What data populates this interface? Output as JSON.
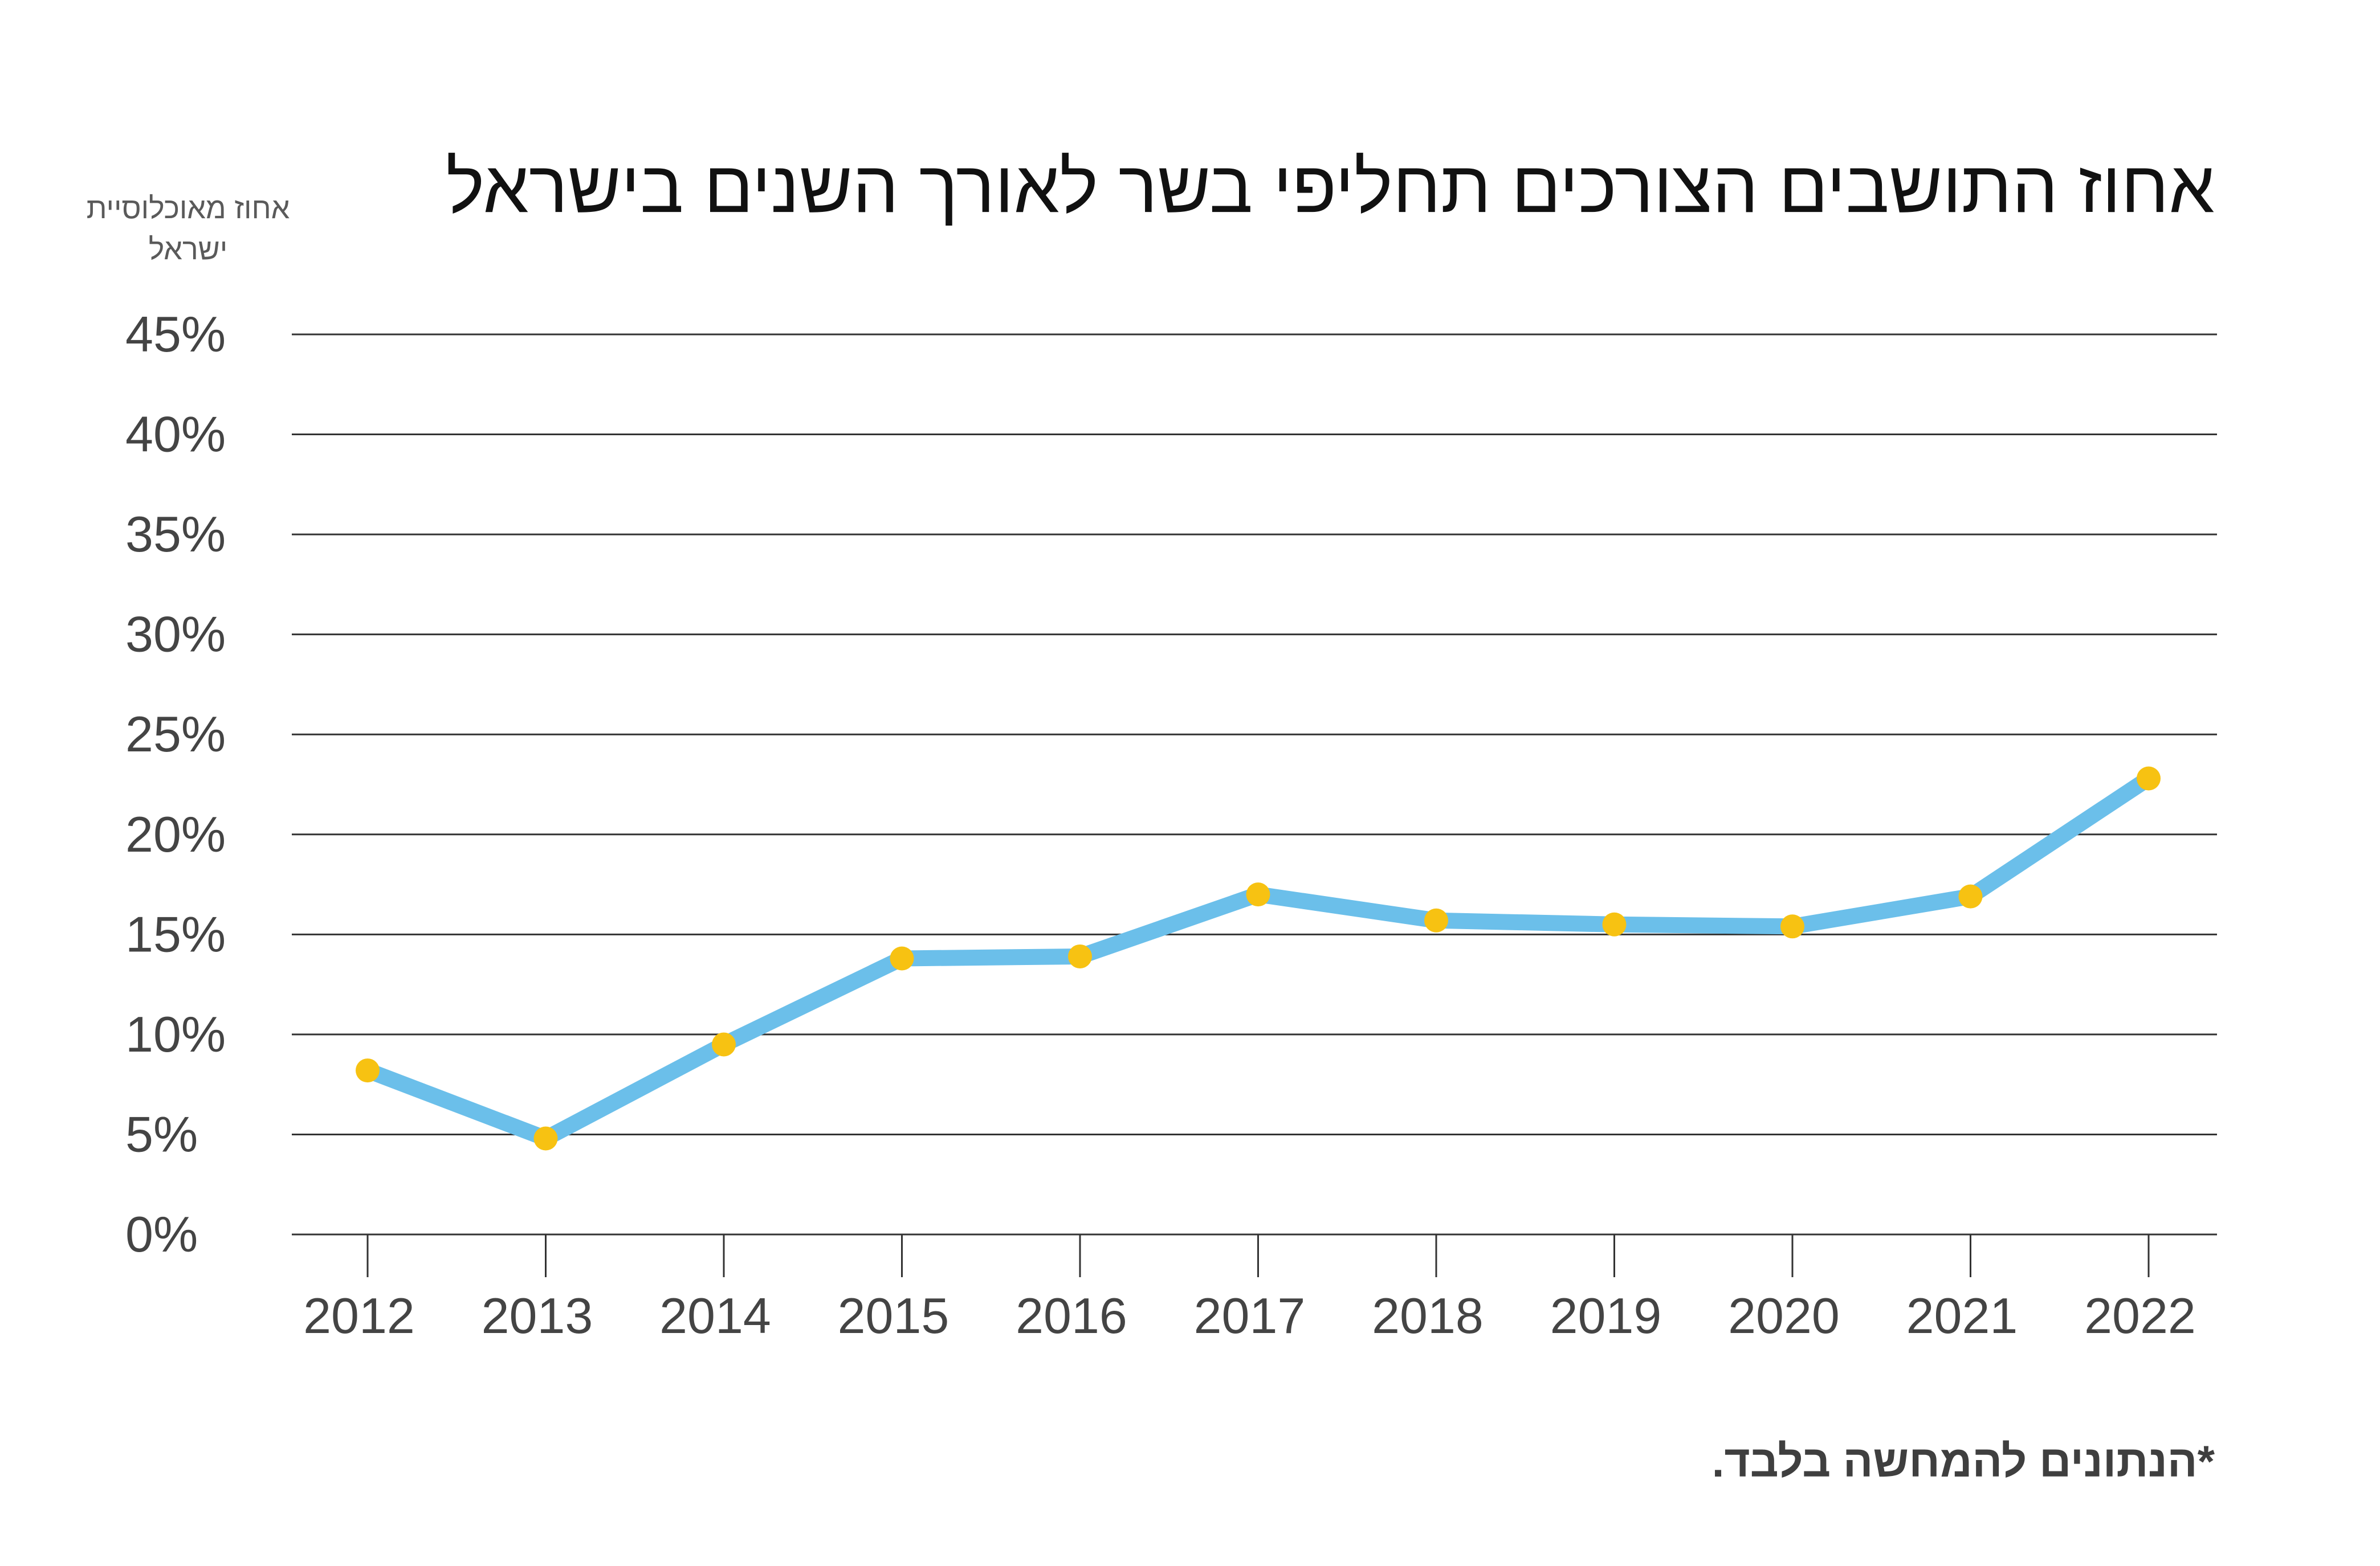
{
  "chart_data": {
    "type": "line",
    "title": "אחוז התושבים הצורכים תחליפי בשר לאורך השנים בישראל",
    "ylabel": "אחוז מאוכלוסיית ישראל",
    "xlabel": "",
    "footnote": "*הנתונים להמחשה בלבד.",
    "x": [
      "2012",
      "2013",
      "2014",
      "2015",
      "2016",
      "2017",
      "2018",
      "2019",
      "2020",
      "2021",
      "2022"
    ],
    "series": [
      {
        "values": [
          8.2,
          4.8,
          9.5,
          13.8,
          13.9,
          17.0,
          15.7,
          15.5,
          15.4,
          16.9,
          22.8
        ]
      }
    ],
    "ylim": [
      0,
      45
    ],
    "yticks": [
      0,
      5,
      10,
      15,
      20,
      25,
      30,
      35,
      40,
      45
    ],
    "ytick_labels": [
      "0%",
      "5%",
      "10%",
      "15%",
      "20%",
      "25%",
      "30%",
      "35%",
      "40%",
      "45%"
    ],
    "grid": true,
    "line_color": "#6bbfea",
    "marker_color": "#f7c212",
    "grid_color": "#333333"
  }
}
